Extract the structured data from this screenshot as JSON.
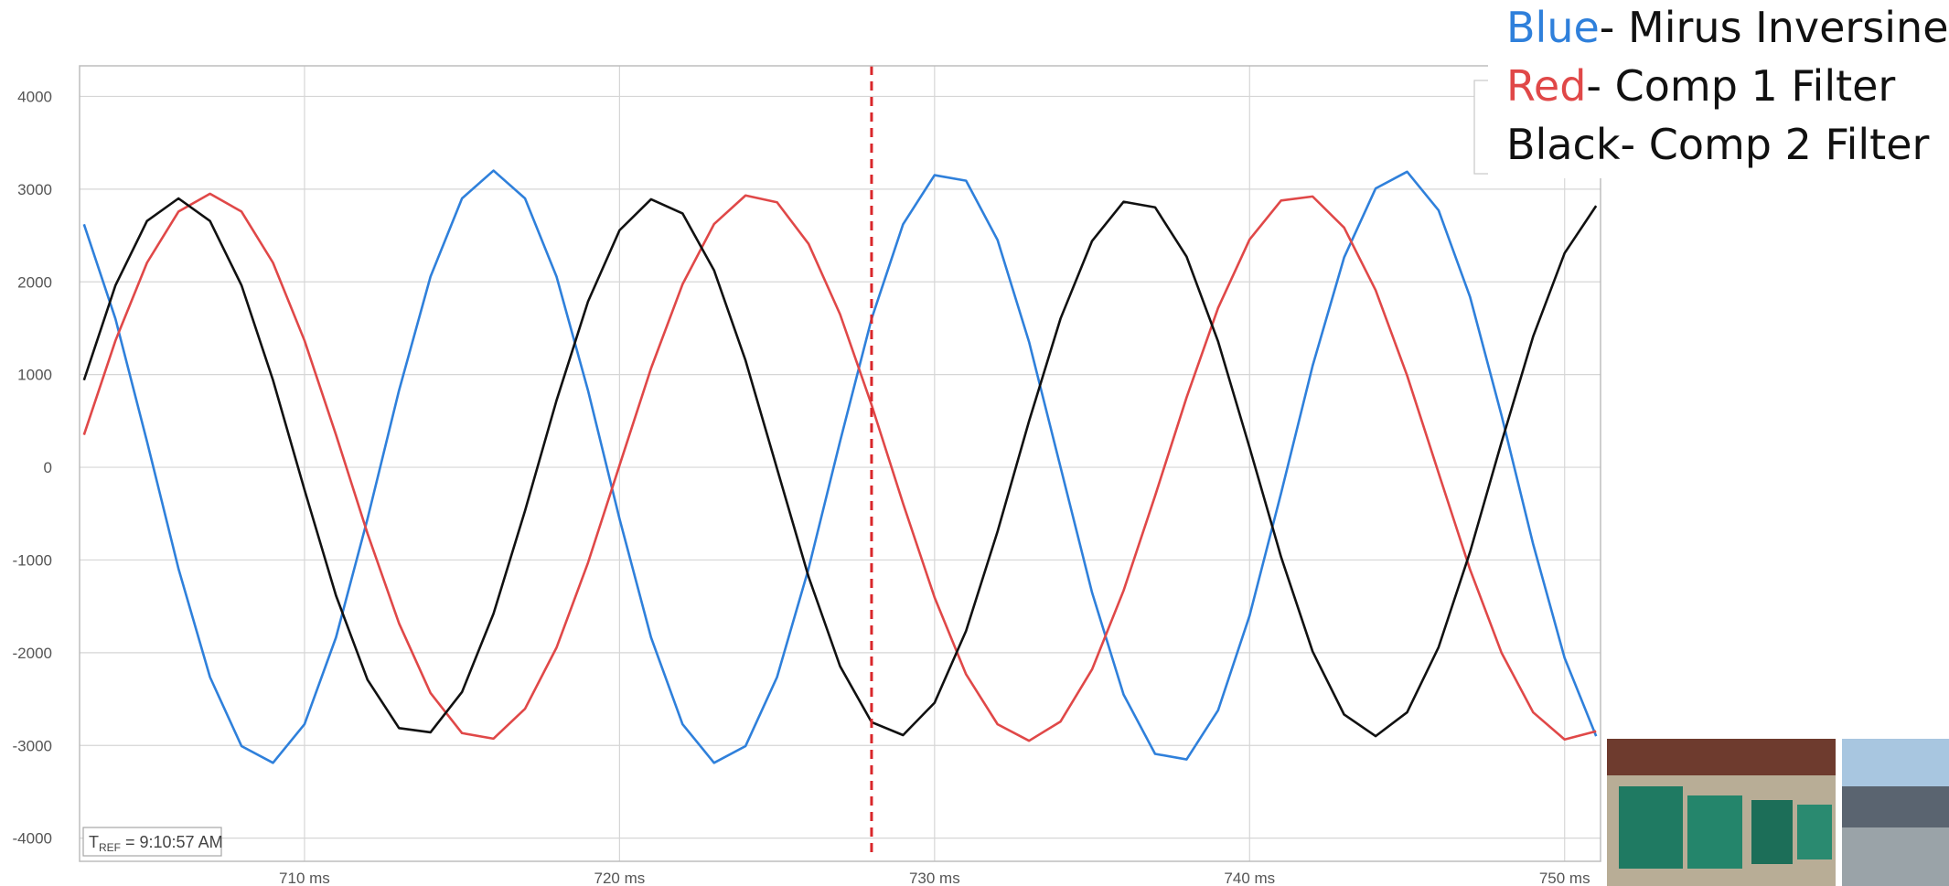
{
  "chart_data": {
    "type": "line",
    "x": [
      703,
      704,
      705,
      706,
      707,
      708,
      709,
      710,
      711,
      712,
      713,
      714,
      715,
      716,
      717,
      718,
      719,
      720,
      721,
      722,
      723,
      724,
      725,
      726,
      727,
      728,
      729,
      730,
      731,
      732,
      733,
      734,
      735,
      736,
      737,
      738,
      739,
      740,
      741,
      742,
      743,
      744,
      745,
      746,
      747,
      748,
      749,
      750,
      751
    ],
    "series": [
      {
        "name": "Mirus Inversine",
        "color_word": "Blue",
        "color": "#2f80db",
        "values": [
          2621,
          1600,
          279,
          -1094,
          -2263,
          -3007,
          -3188,
          -2771,
          -1835,
          -556,
          828,
          2057,
          2900,
          3200,
          2900,
          2057,
          828,
          -556,
          -1835,
          -2771,
          -3188,
          -3007,
          -2263,
          -1094,
          279,
          1600,
          2621,
          3151,
          3091,
          2451,
          1352,
          0,
          -1352,
          -2451,
          -3091,
          -3151,
          -2621,
          -1600,
          -279,
          1094,
          2263,
          3007,
          3188,
          2771,
          1835,
          556,
          -828,
          -2057,
          -2900
        ]
      },
      {
        "name": "Comp 1 Filter",
        "color_word": "Red",
        "color": "#e04848",
        "values": [
          350,
          1367,
          2206,
          2758,
          2950,
          2758,
          2206,
          1367,
          350,
          -714,
          -1683,
          -2435,
          -2867,
          -2927,
          -2605,
          -1945,
          -1029,
          21,
          1067,
          1974,
          2623,
          2932,
          2858,
          2410,
          1650,
          674,
          -390,
          -1403,
          -2233,
          -2772,
          -2950,
          -2742,
          -2180,
          -1330,
          -308,
          753,
          1718,
          2457,
          2877,
          2921,
          2585,
          1911,
          990,
          -62,
          -1105,
          -2003,
          -2643,
          -2936,
          -2847
        ]
      },
      {
        "name": "Comp 2 Filter",
        "color_word": "Black",
        "color": "#111111",
        "values": [
          940,
          1963,
          2656,
          2900,
          2656,
          1963,
          940,
          -243,
          -1384,
          -2292,
          -2813,
          -2859,
          -2424,
          -1579,
          -469,
          721,
          1788,
          2556,
          2891,
          2738,
          2125,
          1152,
          -15,
          -1180,
          -2145,
          -2749,
          -2889,
          -2540,
          -1765,
          -692,
          499,
          1605,
          2441,
          2864,
          2804,
          2272,
          1357,
          212,
          -968,
          -1986,
          -2667,
          -2900,
          -2643,
          -1940,
          -911,
          273,
          1410,
          2310,
          2820
        ]
      }
    ],
    "legend_separator": "- ",
    "xlim": [
      702.86,
      751.14
    ],
    "ylim": [
      -4250,
      4330
    ],
    "xticks": [
      {
        "value": 710,
        "label": "710 ms"
      },
      {
        "value": 720,
        "label": "720 ms"
      },
      {
        "value": 730,
        "label": "730 ms"
      },
      {
        "value": 740,
        "label": "740 ms"
      },
      {
        "value": 750,
        "label": "750 ms"
      }
    ],
    "yticks": [
      -4000,
      -3000,
      -2000,
      -1000,
      0,
      1000,
      2000,
      3000,
      4000
    ],
    "grid": true,
    "cursor": 728,
    "cursor_color": "#d9262a",
    "annotation": {
      "main": "T",
      "subscript": "REF",
      "rest": " = 9:10:57 AM"
    }
  }
}
